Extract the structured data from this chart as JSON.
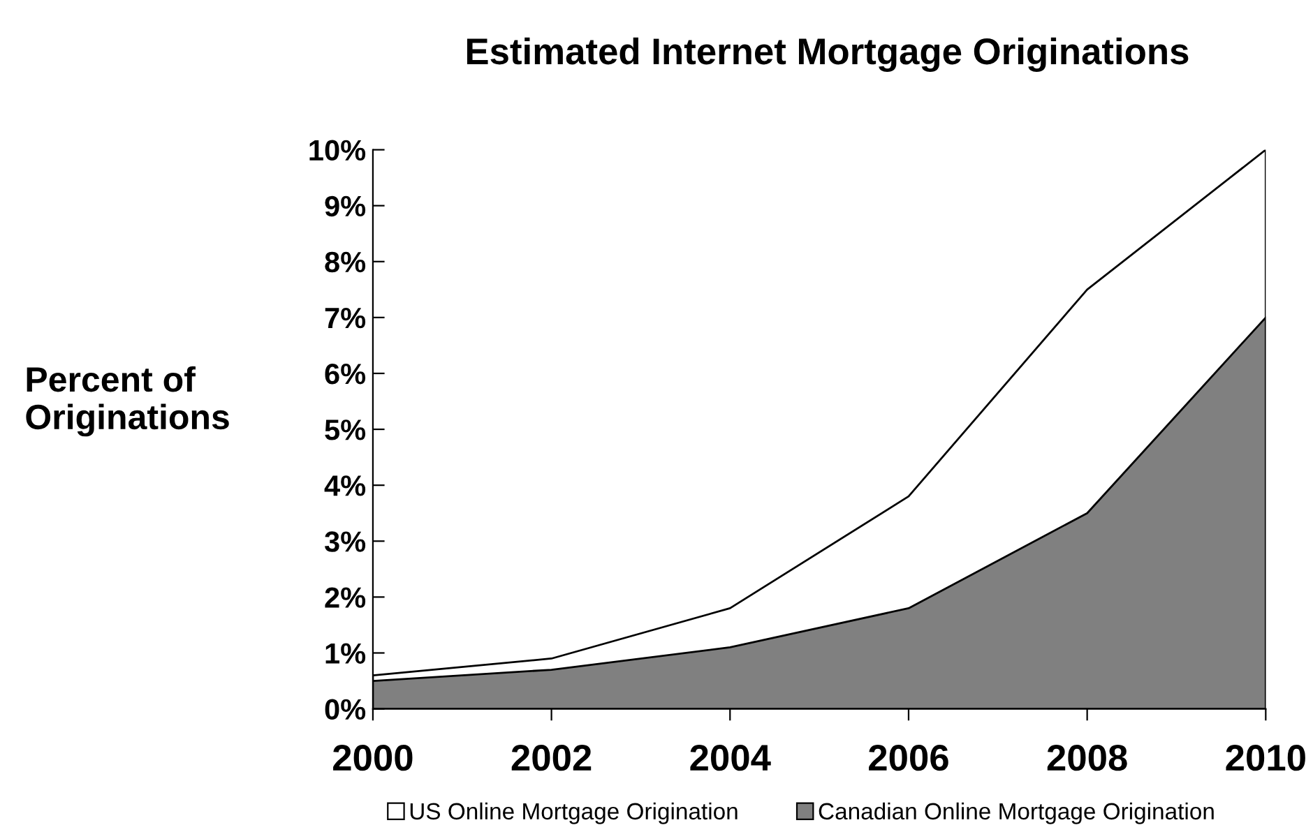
{
  "chart_data": {
    "type": "area",
    "title": "Estimated Internet Mortgage Originations",
    "ylabel": "Percent of\nOriginations",
    "categories": [
      "2000",
      "2002",
      "2004",
      "2006",
      "2008",
      "2010"
    ],
    "series": [
      {
        "name": "US Online Mortgage Origination",
        "color": "#ffffff",
        "values": [
          0.6,
          0.9,
          1.8,
          3.8,
          7.5,
          10
        ]
      },
      {
        "name": "Canadian Online Mortgage Origination",
        "color": "#808080",
        "values": [
          0.5,
          0.7,
          1.1,
          1.8,
          3.5,
          7.0
        ]
      }
    ],
    "ylim": [
      0,
      10
    ],
    "yticks": [
      {
        "value": 0,
        "label": "0%"
      },
      {
        "value": 1,
        "label": "1%"
      },
      {
        "value": 2,
        "label": "2%"
      },
      {
        "value": 3,
        "label": "3%"
      },
      {
        "value": 4,
        "label": "4%"
      },
      {
        "value": 5,
        "label": "5%"
      },
      {
        "value": 6,
        "label": "6%"
      },
      {
        "value": 7,
        "label": "7%"
      },
      {
        "value": 8,
        "label": "8%"
      },
      {
        "value": 9,
        "label": "9%"
      },
      {
        "value": 10,
        "label": "10%"
      }
    ],
    "grid": false,
    "legend": "bottom"
  }
}
